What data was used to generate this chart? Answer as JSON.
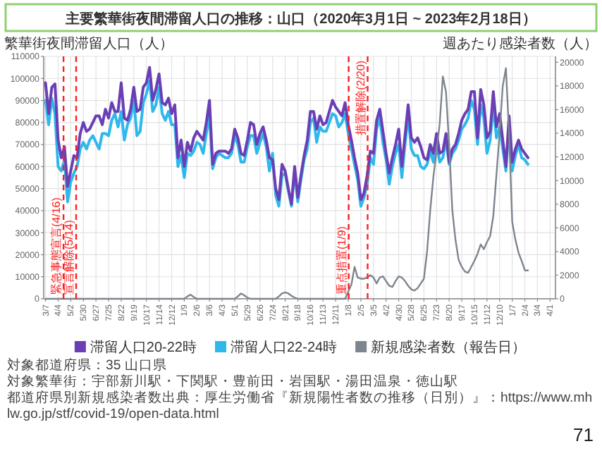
{
  "chart_data": {
    "type": "line",
    "title": "主要繁華街夜間滞留人口の推移：山口（2020年3月1日 ~ 2023年2月18日）",
    "ylabel": "繁華街夜間滞留人口（人）",
    "y2label": "週あたり感染者数（人）",
    "x": [
      "2020-03-07",
      "2020-03-14",
      "2020-03-21",
      "2020-03-28",
      "2020-04-04",
      "2020-04-11",
      "2020-04-18",
      "2020-04-25",
      "2020-05-02",
      "2020-05-09",
      "2020-05-16",
      "2020-05-23",
      "2020-05-30",
      "2020-06-06",
      "2020-06-13",
      "2020-06-20",
      "2020-06-27",
      "2020-07-04",
      "2020-07-11",
      "2020-07-18",
      "2020-07-25",
      "2020-08-01",
      "2020-08-08",
      "2020-08-15",
      "2020-08-22",
      "2020-08-29",
      "2020-09-05",
      "2020-09-12",
      "2020-09-19",
      "2020-09-26",
      "2020-10-03",
      "2020-10-10",
      "2020-10-17",
      "2020-10-24",
      "2020-10-31",
      "2020-11-07",
      "2020-11-14",
      "2020-11-21",
      "2020-11-28",
      "2020-12-05",
      "2020-12-12",
      "2020-12-19",
      "2020-12-26",
      "2021-01-02",
      "2021-01-09",
      "2021-01-16",
      "2021-01-23",
      "2021-01-30",
      "2021-02-06",
      "2021-02-13",
      "2021-02-20",
      "2021-02-27",
      "2021-03-06",
      "2021-03-13",
      "2021-03-20",
      "2021-03-27",
      "2021-04-03",
      "2021-04-10",
      "2021-04-17",
      "2021-04-24",
      "2021-05-01",
      "2021-05-08",
      "2021-05-15",
      "2021-05-22",
      "2021-05-29",
      "2021-06-05",
      "2021-06-12",
      "2021-06-19",
      "2021-06-26",
      "2021-07-03",
      "2021-07-10",
      "2021-07-17",
      "2021-07-24",
      "2021-07-31",
      "2021-08-07",
      "2021-08-14",
      "2021-08-21",
      "2021-08-28",
      "2021-09-04",
      "2021-09-11",
      "2021-09-18",
      "2021-09-25",
      "2021-10-02",
      "2021-10-09",
      "2021-10-16",
      "2021-10-23",
      "2021-10-30",
      "2021-11-06",
      "2021-11-13",
      "2021-11-20",
      "2021-11-27",
      "2021-12-04",
      "2021-12-11",
      "2021-12-18",
      "2021-12-25",
      "2022-01-01",
      "2022-01-08",
      "2022-01-15",
      "2022-01-22",
      "2022-01-29",
      "2022-02-05",
      "2022-02-12",
      "2022-02-19",
      "2022-02-26",
      "2022-03-05",
      "2022-03-12",
      "2022-03-19",
      "2022-03-26",
      "2022-04-02",
      "2022-04-09",
      "2022-04-16",
      "2022-04-23",
      "2022-04-30",
      "2022-05-07",
      "2022-05-14",
      "2022-05-21",
      "2022-05-28",
      "2022-06-04",
      "2022-06-11",
      "2022-06-18",
      "2022-06-25",
      "2022-07-02",
      "2022-07-09",
      "2022-07-16",
      "2022-07-23",
      "2022-07-30",
      "2022-08-06",
      "2022-08-13",
      "2022-08-20",
      "2022-08-27",
      "2022-09-03",
      "2022-09-10",
      "2022-09-17",
      "2022-09-24",
      "2022-10-01",
      "2022-10-08",
      "2022-10-15",
      "2022-10-22",
      "2022-10-29",
      "2022-11-05",
      "2022-11-12",
      "2022-11-19",
      "2022-11-26",
      "2022-12-03",
      "2022-12-10",
      "2022-12-17",
      "2022-12-24",
      "2022-12-31",
      "2023-01-07",
      "2023-01-14",
      "2023-01-21",
      "2023-01-28",
      "2023-02-04",
      "2023-02-11"
    ],
    "xlim": [
      "2020-03-03",
      "2023-04-13"
    ],
    "xticks": [
      {
        "value": "2020-03-07",
        "label": "3/7"
      },
      {
        "value": "2020-04-04",
        "label": "4/4"
      },
      {
        "value": "2020-05-02",
        "label": "5/2"
      },
      {
        "value": "2020-05-30",
        "label": "5/30"
      },
      {
        "value": "2020-06-27",
        "label": "6/27"
      },
      {
        "value": "2020-07-25",
        "label": "7/25"
      },
      {
        "value": "2020-08-22",
        "label": "8/22"
      },
      {
        "value": "2020-09-19",
        "label": "9/19"
      },
      {
        "value": "2020-10-17",
        "label": "10/17"
      },
      {
        "value": "2020-11-14",
        "label": "11/14"
      },
      {
        "value": "2020-12-12",
        "label": "12/12"
      },
      {
        "value": "2021-01-09",
        "label": "1/9"
      },
      {
        "value": "2021-02-06",
        "label": "2/6"
      },
      {
        "value": "2021-03-06",
        "label": "3/6"
      },
      {
        "value": "2021-04-03",
        "label": "4/3"
      },
      {
        "value": "2021-05-01",
        "label": "5/1"
      },
      {
        "value": "2021-05-29",
        "label": "5/29"
      },
      {
        "value": "2021-06-26",
        "label": "6/26"
      },
      {
        "value": "2021-07-24",
        "label": "7/24"
      },
      {
        "value": "2021-08-21",
        "label": "8/21"
      },
      {
        "value": "2021-09-18",
        "label": "9/18"
      },
      {
        "value": "2021-10-16",
        "label": "10/16"
      },
      {
        "value": "2021-11-13",
        "label": "11/13"
      },
      {
        "value": "2021-12-11",
        "label": "12/11"
      },
      {
        "value": "2022-01-08",
        "label": "1/8"
      },
      {
        "value": "2022-02-05",
        "label": "2/5"
      },
      {
        "value": "2022-03-05",
        "label": "3/5"
      },
      {
        "value": "2022-04-02",
        "label": "4/2"
      },
      {
        "value": "2022-04-30",
        "label": "4/30"
      },
      {
        "value": "2022-05-28",
        "label": "5/28"
      },
      {
        "value": "2022-06-25",
        "label": "6/25"
      },
      {
        "value": "2022-07-23",
        "label": "7/23"
      },
      {
        "value": "2022-08-20",
        "label": "8/20"
      },
      {
        "value": "2022-09-17",
        "label": "9/17"
      },
      {
        "value": "2022-10-15",
        "label": "10/15"
      },
      {
        "value": "2022-11-12",
        "label": "11/12"
      },
      {
        "value": "2022-12-10",
        "label": "12/10"
      },
      {
        "value": "2023-01-07",
        "label": "1/7"
      },
      {
        "value": "2023-02-04",
        "label": "2/4"
      },
      {
        "value": "2023-03-04",
        "label": "3/4"
      },
      {
        "value": "2023-04-01",
        "label": "4/1"
      }
    ],
    "ylim": [
      0,
      110000
    ],
    "yticks": [
      0,
      10000,
      20000,
      30000,
      40000,
      50000,
      60000,
      70000,
      80000,
      90000,
      100000,
      110000
    ],
    "y2lim": [
      0,
      20500
    ],
    "y2ticks": [
      0,
      2000,
      4000,
      6000,
      8000,
      10000,
      12000,
      14000,
      16000,
      18000,
      20000
    ],
    "grid": true,
    "legend": "bottom",
    "series": [
      {
        "name": "滞留人口20-22時",
        "color": "#6a3fb5",
        "values": [
          98000,
          84000,
          96000,
          97500,
          72000,
          64000,
          69000,
          51000,
          58000,
          65000,
          64000,
          75000,
          80000,
          76000,
          77000,
          80000,
          83000,
          83000,
          79000,
          86000,
          82000,
          89000,
          85000,
          85000,
          98000,
          82000,
          81000,
          86000,
          96000,
          85000,
          86000,
          96000,
          98000,
          105000,
          90000,
          95000,
          102000,
          89000,
          88000,
          91000,
          84000,
          88000,
          64000,
          72000,
          60000,
          71000,
          67000,
          73000,
          76000,
          74000,
          72000,
          80000,
          90000,
          61000,
          66000,
          67000,
          67000,
          67000,
          66000,
          68000,
          77000,
          73000,
          66000,
          65000,
          72000,
          80000,
          79000,
          70000,
          75000,
          78000,
          72000,
          64000,
          63000,
          50000,
          45000,
          61000,
          58000,
          50000,
          43000,
          60000,
          46000,
          56000,
          65000,
          72000,
          85000,
          85000,
          77000,
          83000,
          79000,
          80000,
          85000,
          90000,
          87000,
          85000,
          83000,
          89000,
          79000,
          72000,
          64000,
          57000,
          45000,
          48000,
          56000,
          67000,
          66000,
          81000,
          86000,
          76000,
          66000,
          57000,
          64000,
          70000,
          77000,
          60000,
          74000,
          88000,
          73000,
          71000,
          73000,
          69000,
          64000,
          63000,
          70000,
          66000,
          75000,
          66000,
          67000,
          75000,
          62000,
          68000,
          70000,
          75000,
          81000,
          84000,
          86000,
          94000,
          94000,
          73000,
          95000,
          88000,
          73000,
          76000,
          94000,
          78000,
          84000,
          72000,
          60000,
          83000,
          62000,
          68000,
          72000,
          68000,
          66000,
          64000
        ]
      },
      {
        "name": "滞留人口22-24時",
        "color": "#2fb8ec",
        "values": [
          90000,
          79000,
          91000,
          84000,
          60000,
          58000,
          63000,
          44000,
          53000,
          57000,
          60000,
          68000,
          71000,
          68000,
          72000,
          74000,
          71000,
          68000,
          75000,
          75000,
          74000,
          81000,
          84000,
          78000,
          85000,
          72000,
          79000,
          82000,
          90000,
          74000,
          76000,
          89000,
          93000,
          99000,
          85000,
          88000,
          96000,
          84000,
          81000,
          85000,
          79000,
          79000,
          60000,
          65000,
          55000,
          66000,
          65000,
          67000,
          71000,
          70000,
          66000,
          75000,
          83000,
          59000,
          64000,
          66000,
          65000,
          64000,
          64000,
          66000,
          74000,
          70000,
          62000,
          62000,
          69000,
          74000,
          74000,
          66000,
          71000,
          75000,
          69000,
          58000,
          66000,
          47000,
          42000,
          56000,
          57000,
          49000,
          42000,
          58000,
          44000,
          54000,
          63000,
          68000,
          80000,
          82000,
          71000,
          78000,
          76000,
          76000,
          80000,
          84000,
          83000,
          78000,
          80000,
          84000,
          75000,
          68000,
          61000,
          54000,
          42000,
          46000,
          52000,
          64000,
          61000,
          77000,
          82000,
          71000,
          63000,
          52000,
          60000,
          66000,
          70000,
          55000,
          70000,
          83000,
          68000,
          65000,
          65000,
          60000,
          59000,
          61000,
          67000,
          62000,
          71000,
          62000,
          64000,
          72000,
          61000,
          66000,
          68000,
          72000,
          77000,
          79000,
          82000,
          90000,
          86000,
          70000,
          88000,
          82000,
          66000,
          72000,
          88000,
          73000,
          78000,
          68000,
          58000,
          79000,
          58000,
          65000,
          70000,
          64000,
          63000,
          61000
        ]
      },
      {
        "name": "新規感染者数（報告日）",
        "color": "#7d858e",
        "axis": "y2",
        "values": [
          0,
          0,
          0,
          0,
          0,
          0,
          0,
          0,
          0,
          0,
          0,
          0,
          0,
          0,
          0,
          0,
          0,
          0,
          0,
          0,
          0,
          0,
          0,
          0,
          0,
          0,
          0,
          0,
          0,
          0,
          0,
          0,
          0,
          0,
          0,
          0,
          0,
          0,
          0,
          0,
          0,
          0,
          0,
          0,
          0,
          200,
          350,
          150,
          0,
          0,
          0,
          0,
          0,
          0,
          0,
          0,
          0,
          0,
          0,
          0,
          0,
          200,
          450,
          300,
          100,
          0,
          0,
          0,
          0,
          0,
          0,
          0,
          0,
          0,
          200,
          450,
          550,
          450,
          250,
          100,
          0,
          0,
          0,
          0,
          0,
          0,
          0,
          0,
          0,
          0,
          0,
          0,
          0,
          0,
          0,
          0,
          600,
          1200,
          2700,
          1800,
          1700,
          1700,
          1800,
          2000,
          1800,
          1300,
          1800,
          1900,
          1500,
          1100,
          1000,
          1500,
          1900,
          1800,
          1500,
          1100,
          800,
          700,
          900,
          1300,
          1700,
          4000,
          7500,
          10300,
          12500,
          14800,
          18800,
          17500,
          13000,
          7500,
          5000,
          3300,
          2700,
          2300,
          2200,
          2700,
          3200,
          3800,
          4600,
          4200,
          4800,
          5300,
          7000,
          10500,
          14000,
          18000,
          19500,
          14000,
          6500,
          5000,
          3900,
          3200,
          2400,
          2400
        ]
      }
    ],
    "ref_lines": [
      {
        "axis": "x",
        "value": "2020-04-16",
        "label": "緊急事態宣言(4/16)",
        "color": "#ff1f1f",
        "line_style": "dashed"
      },
      {
        "axis": "x",
        "value": "2020-05-14",
        "label": "宣言解除(5/14)",
        "color": "#ff1f1f",
        "line_style": "dashed"
      },
      {
        "axis": "x",
        "value": "2022-01-09",
        "label": "重点措置(1/9)",
        "color": "#ff1f1f",
        "line_style": "dashed"
      },
      {
        "axis": "x",
        "value": "2022-02-20",
        "label": "措置解除(2/20)",
        "color": "#ff1f1f",
        "line_style": "dashed"
      }
    ],
    "annotations": [
      "対象都道府県：35 山口県",
      "対象繁華街：宇部新川駅・下関駅・豊前田・岩国駅・湯田温泉・徳山駅",
      "都道府県別新規感染者数出典：厚生労働省『新規陽性者数の推移（日別）』：https://www.mhlw.go.jp/stf/covid-19/open-data.html",
      "71"
    ]
  }
}
